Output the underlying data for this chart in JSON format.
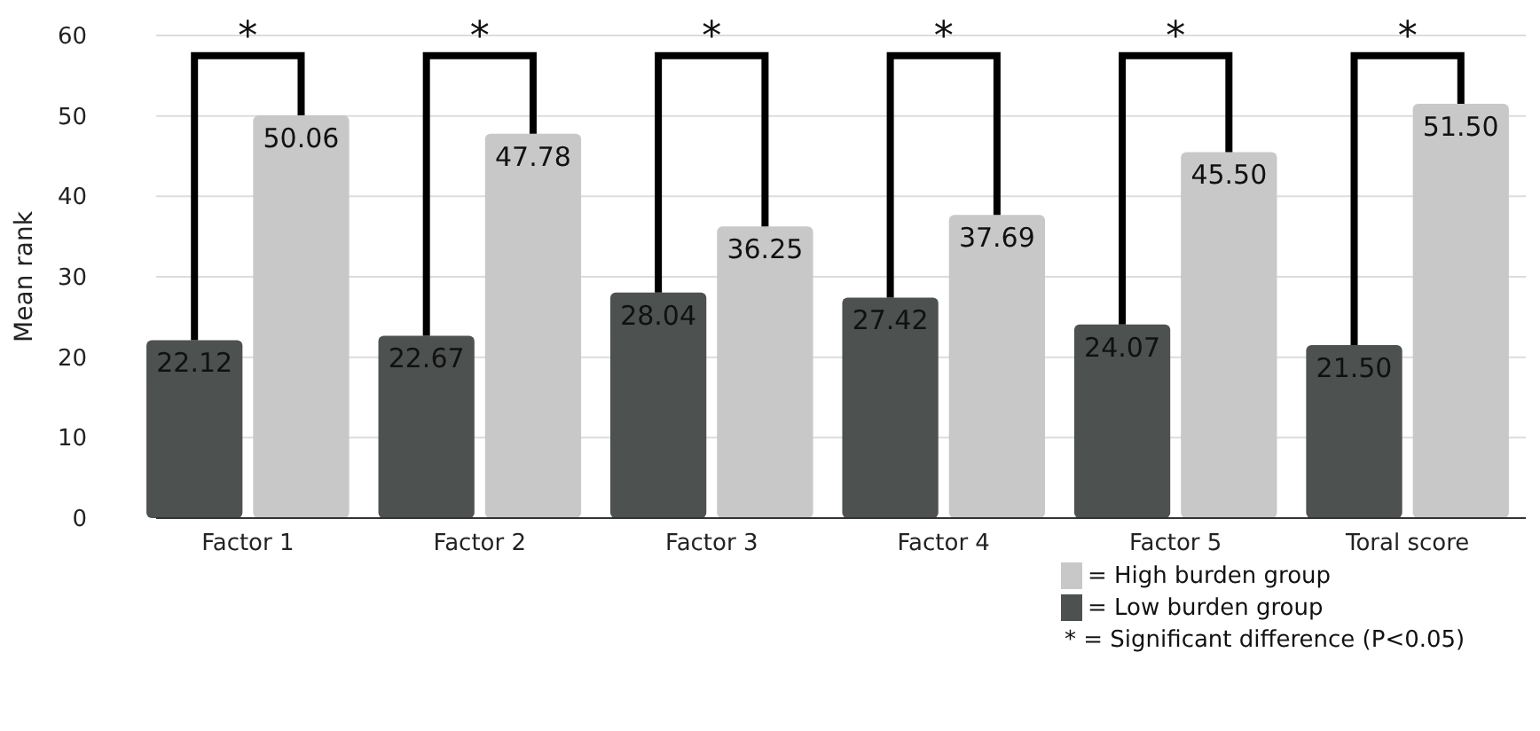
{
  "chart_data": {
    "type": "bar",
    "ylabel": "Mean rank",
    "categories": [
      "Factor 1",
      "Factor 2",
      "Factor 3",
      "Factor 4",
      "Factor 5",
      "Toral score"
    ],
    "series": [
      {
        "name": "= Low burden group",
        "color": "#4d5150",
        "values": [
          22.12,
          22.67,
          28.04,
          27.42,
          24.07,
          21.5
        ],
        "value_labels": [
          "22.12",
          "22.67",
          "28.04",
          "27.42",
          "24.07",
          "21.50"
        ]
      },
      {
        "name": "= High burden group",
        "color": "#c8c8c8",
        "values": [
          50.06,
          47.78,
          36.25,
          37.69,
          45.5,
          51.5
        ],
        "value_labels": [
          "50.06",
          "47.78",
          "36.25",
          "37.69",
          "45.50",
          "51.50"
        ]
      }
    ],
    "ylim": [
      0,
      60
    ],
    "yticks": [
      0,
      10,
      20,
      30,
      40,
      50,
      60
    ],
    "grid": "y",
    "legend": "bottom right",
    "annotations": [
      "*",
      "*",
      "*",
      "*",
      "*",
      "*",
      "* = Significant difference (P<0.05)"
    ]
  }
}
